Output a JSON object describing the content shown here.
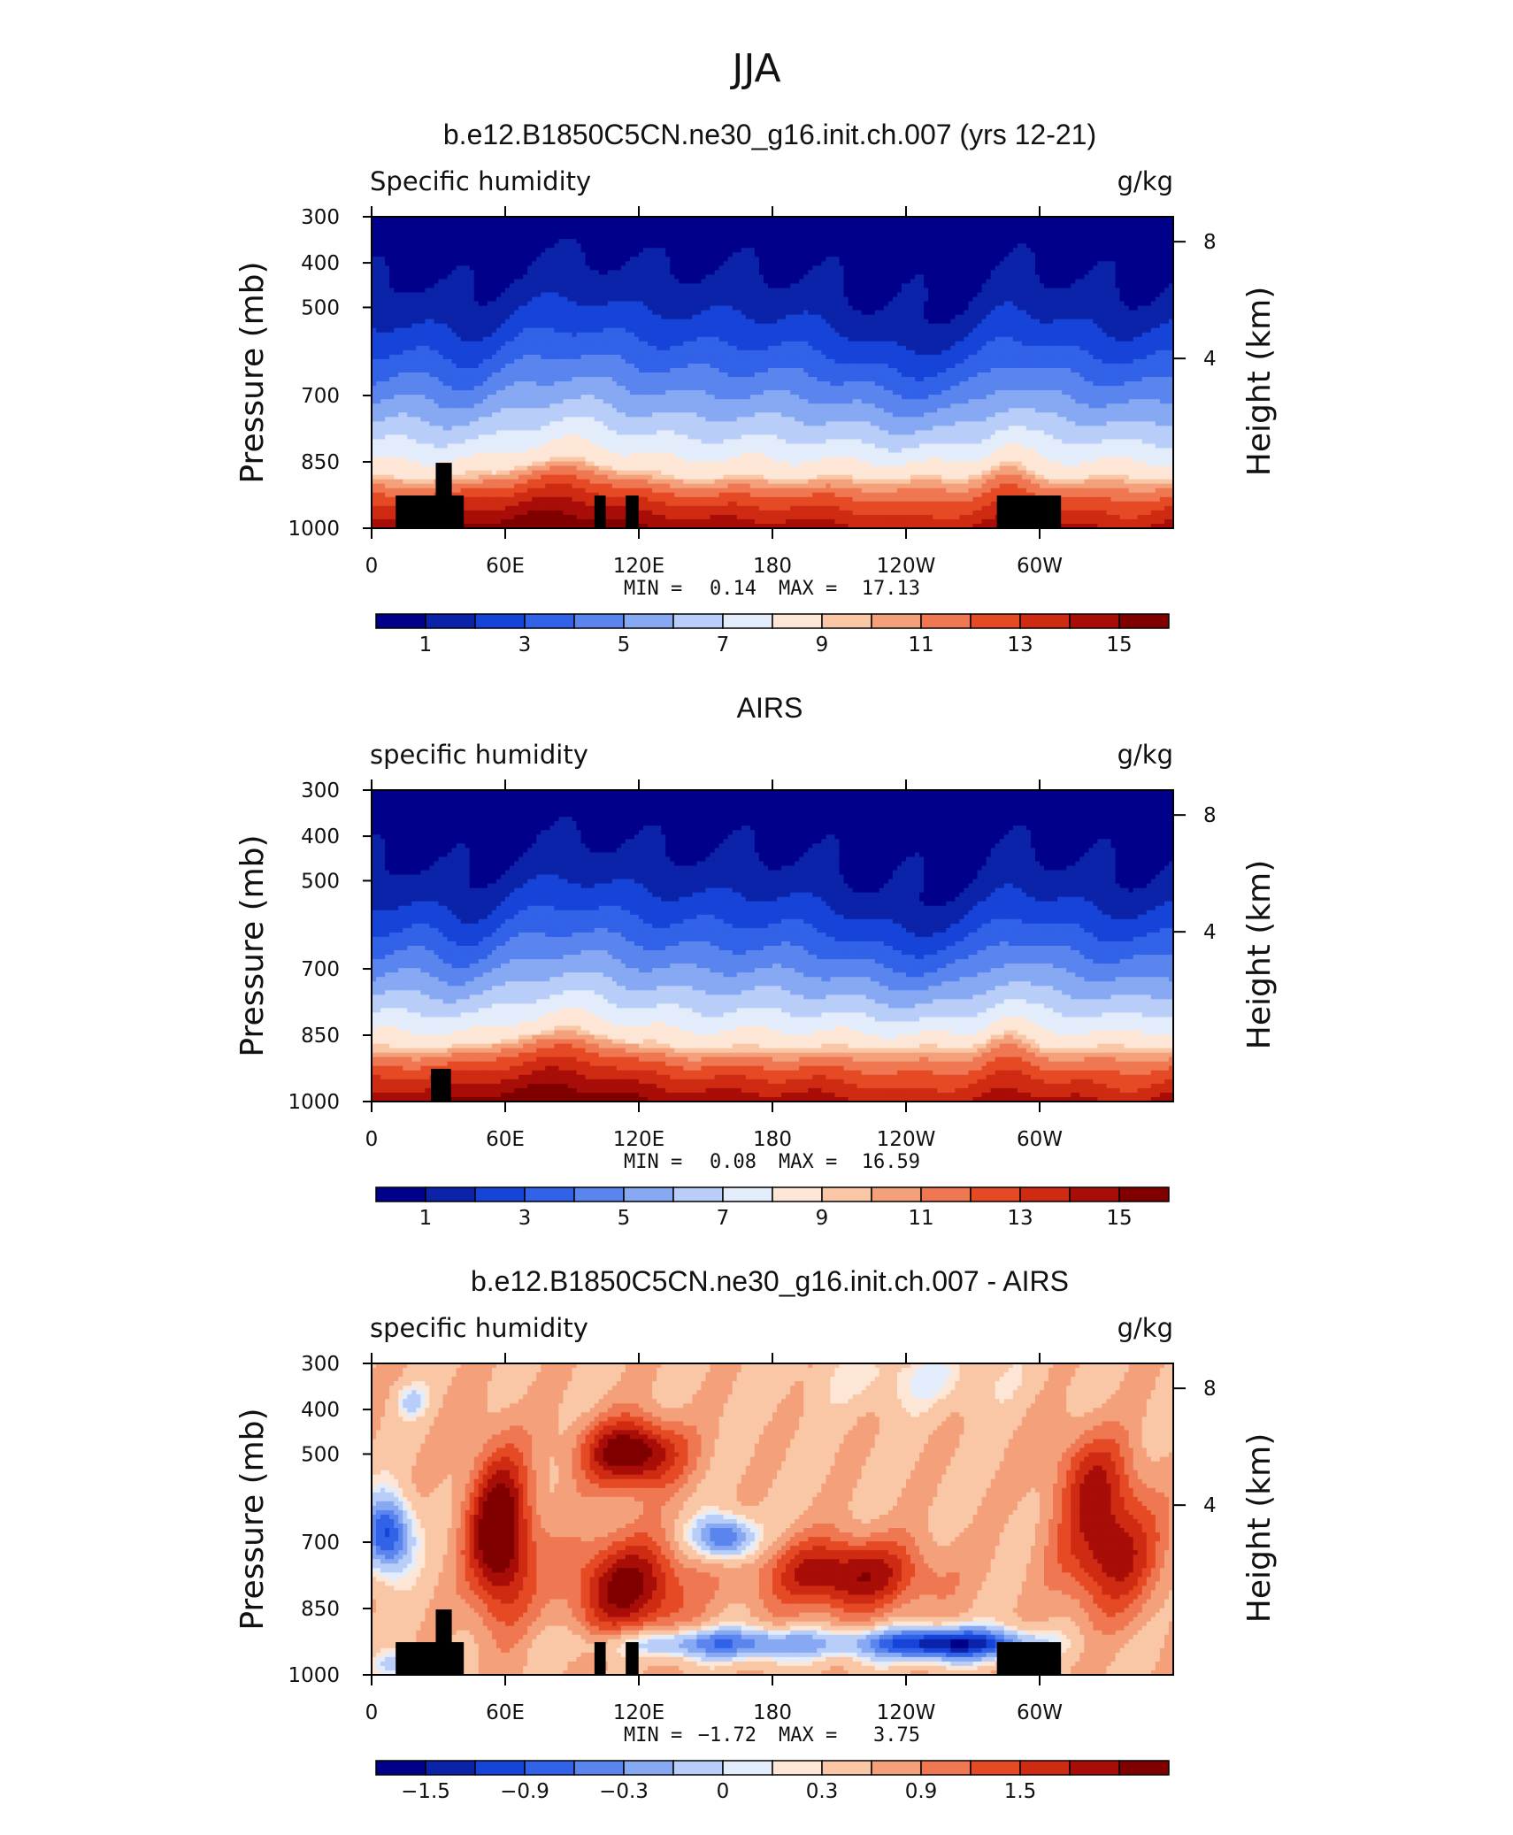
{
  "figure_title": "JJA",
  "chart_data": [
    {
      "type": "heatmap",
      "title": "b.e12.B1850C5CN.ne30_g16.init.ch.007 (yrs 12-21)",
      "left_label": "Specific humidity",
      "right_label": "g/kg",
      "ylabel": "Pressure (mb)",
      "ylabel_right": "Height (km)",
      "y_ticks": [
        "300",
        "400",
        "500",
        "700",
        "850",
        "1000"
      ],
      "y_right_ticks": [
        "8",
        "4"
      ],
      "x_ticks": [
        "0",
        "60E",
        "120E",
        "180",
        "120W",
        "60W"
      ],
      "min_label": "MIN =",
      "min_value": "0.14",
      "max_label": "MAX =",
      "max_value": "17.13",
      "colorbar_ticks": [
        "1",
        "3",
        "5",
        "7",
        "9",
        "11",
        "13",
        "15"
      ],
      "colorbar_colors": [
        "#00008a",
        "#0b23a8",
        "#1644d8",
        "#3162e8",
        "#5a84ee",
        "#87a8f2",
        "#b8cef8",
        "#e2ecfb",
        "#fde6d6",
        "#f9c7a6",
        "#f4a07b",
        "#ef7752",
        "#e54a25",
        "#cf2a12",
        "#a80d07",
        "#800000"
      ],
      "surface": "model",
      "levels": [
        0,
        1,
        2,
        3,
        4,
        5,
        6,
        7,
        8,
        9,
        10,
        11,
        12,
        13,
        14,
        15,
        16
      ]
    },
    {
      "type": "heatmap",
      "title": "AIRS",
      "left_label": "specific humidity",
      "right_label": "g/kg",
      "ylabel": "Pressure (mb)",
      "ylabel_right": "Height (km)",
      "y_ticks": [
        "300",
        "400",
        "500",
        "700",
        "850",
        "1000"
      ],
      "y_right_ticks": [
        "8",
        "4"
      ],
      "x_ticks": [
        "0",
        "60E",
        "120E",
        "180",
        "120W",
        "60W"
      ],
      "min_label": "MIN =",
      "min_value": "0.08",
      "max_label": "MAX =",
      "max_value": "16.59",
      "colorbar_ticks": [
        "1",
        "3",
        "5",
        "7",
        "9",
        "11",
        "13",
        "15"
      ],
      "colorbar_colors": [
        "#00008a",
        "#0b23a8",
        "#1644d8",
        "#3162e8",
        "#5a84ee",
        "#87a8f2",
        "#b8cef8",
        "#e2ecfb",
        "#fde6d6",
        "#f9c7a6",
        "#f4a07b",
        "#ef7752",
        "#e54a25",
        "#cf2a12",
        "#a80d07",
        "#800000"
      ],
      "surface": "obs",
      "levels": [
        0,
        1,
        2,
        3,
        4,
        5,
        6,
        7,
        8,
        9,
        10,
        11,
        12,
        13,
        14,
        15,
        16
      ]
    },
    {
      "type": "heatmap",
      "title": "b.e12.B1850C5CN.ne30_g16.init.ch.007 - AIRS",
      "left_label": "specific humidity",
      "right_label": "g/kg",
      "ylabel": "Pressure (mb)",
      "ylabel_right": "Height (km)",
      "y_ticks": [
        "300",
        "400",
        "500",
        "700",
        "850",
        "1000"
      ],
      "y_right_ticks": [
        "8",
        "4"
      ],
      "x_ticks": [
        "0",
        "60E",
        "120E",
        "180",
        "120W",
        "60W"
      ],
      "min_label": "MIN =",
      "min_value": "−1.72",
      "max_label": "MAX =",
      "max_value": "3.75",
      "colorbar_ticks": [
        "−1.5",
        "−0.9",
        "−0.3",
        "0",
        "0.3",
        "0.9",
        "1.5"
      ],
      "colorbar_colors": [
        "#00008a",
        "#0b23a8",
        "#1644d8",
        "#3162e8",
        "#5a84ee",
        "#87a8f2",
        "#b8cef8",
        "#e2ecfb",
        "#fde6d6",
        "#f9c7a6",
        "#f4a07b",
        "#ef7752",
        "#e54a25",
        "#cf2a12",
        "#a80d07",
        "#800000"
      ],
      "surface": "model",
      "levels": [
        -2.1,
        -1.8,
        -1.5,
        -1.2,
        -0.9,
        -0.6,
        -0.3,
        0,
        0.15,
        0.3,
        0.6,
        0.9,
        1.2,
        1.5,
        1.8,
        2.1,
        2.4
      ]
    }
  ]
}
